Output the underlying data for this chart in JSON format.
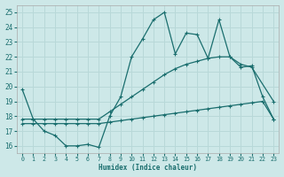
{
  "xlabel": "Humidex (Indice chaleur)",
  "bg_color": "#cde8e8",
  "grid_color": "#b8d8d8",
  "line_color": "#1a6e6e",
  "xlim": [
    -0.5,
    23.5
  ],
  "ylim": [
    15.5,
    25.5
  ],
  "xticks": [
    0,
    1,
    2,
    3,
    4,
    5,
    6,
    7,
    8,
    9,
    10,
    11,
    12,
    13,
    14,
    15,
    16,
    17,
    18,
    19,
    20,
    21,
    22,
    23
  ],
  "yticks": [
    16,
    17,
    18,
    19,
    20,
    21,
    22,
    23,
    24,
    25
  ],
  "line1_x": [
    0,
    1,
    2,
    3,
    4,
    5,
    6,
    7,
    8,
    9,
    10,
    11,
    12,
    13,
    14,
    15,
    16,
    17,
    18,
    19,
    20,
    21,
    22,
    23
  ],
  "line1_y": [
    19.8,
    17.8,
    17.0,
    16.7,
    16.0,
    16.0,
    16.1,
    15.9,
    18.0,
    19.3,
    22.0,
    23.2,
    24.5,
    25.0,
    22.2,
    23.6,
    23.5,
    21.9,
    24.5,
    22.0,
    21.3,
    21.4,
    19.3,
    17.8
  ],
  "line2_x": [
    0,
    1,
    2,
    3,
    4,
    5,
    6,
    7,
    8,
    9,
    10,
    11,
    12,
    13,
    14,
    15,
    16,
    17,
    18,
    19,
    20,
    21,
    23
  ],
  "line2_y": [
    17.8,
    17.8,
    17.8,
    17.8,
    17.8,
    17.8,
    17.8,
    17.8,
    18.3,
    18.8,
    19.3,
    19.8,
    20.3,
    20.8,
    21.2,
    21.5,
    21.7,
    21.9,
    22.0,
    22.0,
    21.5,
    21.3,
    19.0
  ],
  "line3_x": [
    0,
    1,
    2,
    3,
    4,
    5,
    6,
    7,
    8,
    9,
    10,
    11,
    12,
    13,
    14,
    15,
    16,
    17,
    18,
    19,
    20,
    21,
    22,
    23
  ],
  "line3_y": [
    17.5,
    17.5,
    17.5,
    17.5,
    17.5,
    17.5,
    17.5,
    17.5,
    17.6,
    17.7,
    17.8,
    17.9,
    18.0,
    18.1,
    18.2,
    18.3,
    18.4,
    18.5,
    18.6,
    18.7,
    18.8,
    18.9,
    19.0,
    17.8
  ]
}
